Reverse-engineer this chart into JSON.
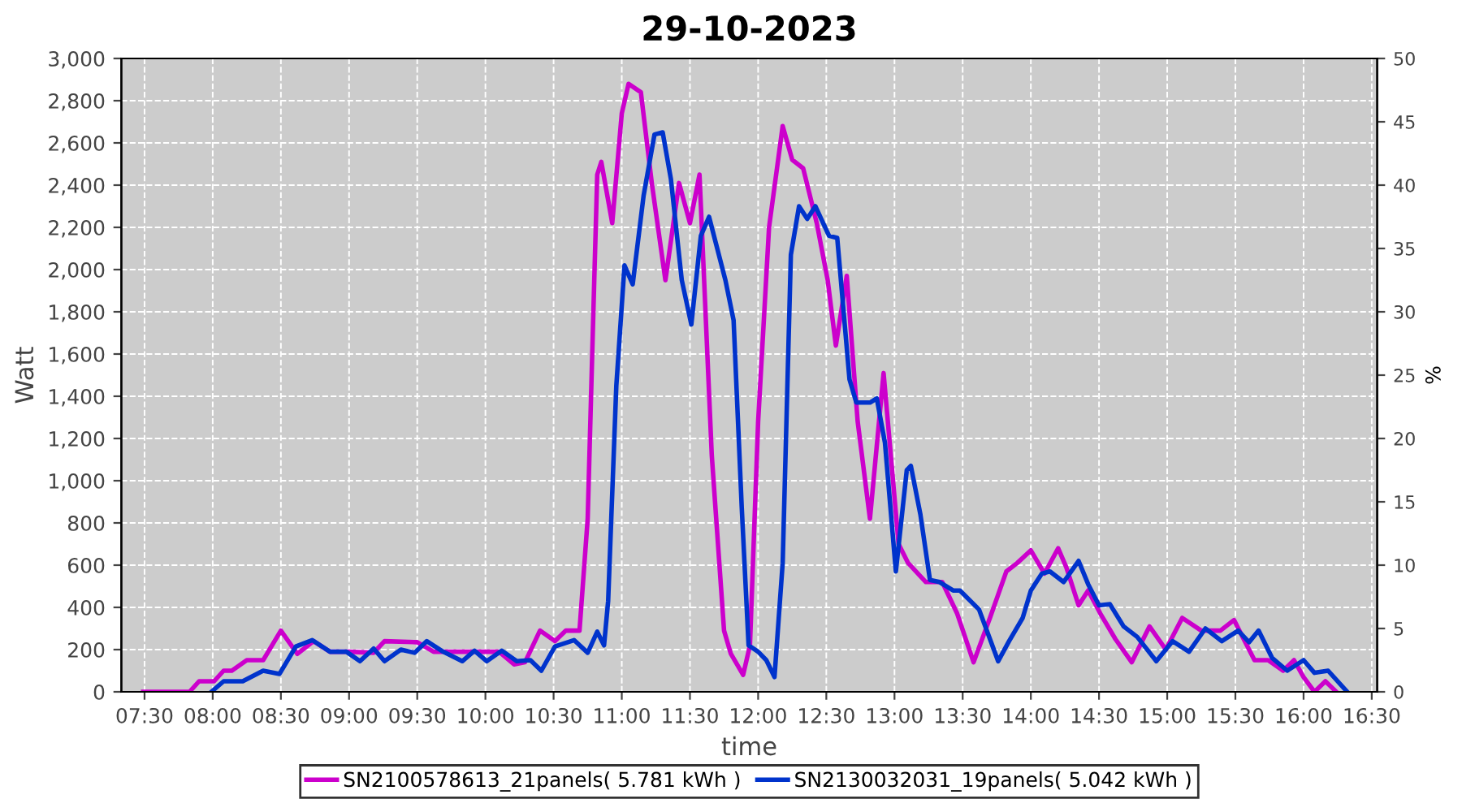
{
  "chart_data": {
    "type": "line",
    "title": "29-10-2023",
    "xlabel": "time",
    "ylabel": "Watt",
    "y2label": "%",
    "xlim": [
      7.33,
      16.54
    ],
    "xticks": [
      {
        "value": 7.5,
        "label": "07:30"
      },
      {
        "value": 8,
        "label": "08:00"
      },
      {
        "value": 8.5,
        "label": "08:30"
      },
      {
        "value": 9,
        "label": "09:00"
      },
      {
        "value": 9.5,
        "label": "09:30"
      },
      {
        "value": 10,
        "label": "10:00"
      },
      {
        "value": 10.5,
        "label": "10:30"
      },
      {
        "value": 11,
        "label": "11:00"
      },
      {
        "value": 11.5,
        "label": "11:30"
      },
      {
        "value": 12,
        "label": "12:00"
      },
      {
        "value": 12.5,
        "label": "12:30"
      },
      {
        "value": 13,
        "label": "13:00"
      },
      {
        "value": 13.5,
        "label": "13:30"
      },
      {
        "value": 14,
        "label": "14:00"
      },
      {
        "value": 14.5,
        "label": "14:30"
      },
      {
        "value": 15,
        "label": "15:00"
      },
      {
        "value": 15.5,
        "label": "15:30"
      },
      {
        "value": 16,
        "label": "16:00"
      },
      {
        "value": 16.5,
        "label": "16:30"
      }
    ],
    "ylim": [
      0,
      3000
    ],
    "yticks": [
      0,
      200,
      400,
      600,
      800,
      {
        "value": 1000,
        "label": "1,000"
      },
      {
        "value": 1200,
        "label": "1,200"
      },
      {
        "value": 1400,
        "label": "1,400"
      },
      {
        "value": 1600,
        "label": "1,600"
      },
      {
        "value": 1800,
        "label": "1,800"
      },
      {
        "value": 2000,
        "label": "2,000"
      },
      {
        "value": 2200,
        "label": "2,200"
      },
      {
        "value": 2400,
        "label": "2,400"
      },
      {
        "value": 2600,
        "label": "2,600"
      },
      {
        "value": 2800,
        "label": "2,800"
      },
      {
        "value": 3000,
        "label": "3,000"
      }
    ],
    "y2lim": [
      0,
      50
    ],
    "y2ticks": [
      0,
      5,
      10,
      15,
      20,
      25,
      30,
      35,
      40,
      45,
      50
    ],
    "grid": true,
    "legend": "bottom",
    "marker": "none",
    "line_style": "solid",
    "series": [
      {
        "name": "SN2100578613_21panels( 5.781 kWh )",
        "color": "#cc00cc",
        "x": [
          7.49,
          7.83,
          7.9,
          8.01,
          8.08,
          8.14,
          8.25,
          8.37,
          8.5,
          8.62,
          8.74,
          8.86,
          9.0,
          9.18,
          9.26,
          9.5,
          9.62,
          10.0,
          10.1,
          10.21,
          10.29,
          10.4,
          10.51,
          10.59,
          10.69,
          10.75,
          10.79,
          10.82,
          10.85,
          10.93,
          11.0,
          11.05,
          11.14,
          11.22,
          11.32,
          11.42,
          11.5,
          11.57,
          11.66,
          11.75,
          11.8,
          11.89,
          11.94,
          12.0,
          12.08,
          12.18,
          12.25,
          12.33,
          12.43,
          12.51,
          12.57,
          12.65,
          12.73,
          12.82,
          12.92,
          13.03,
          13.1,
          13.23,
          13.35,
          13.46,
          13.58,
          13.7,
          13.82,
          13.9,
          14.0,
          14.1,
          14.2,
          14.26,
          14.35,
          14.42,
          14.51,
          14.62,
          14.74,
          14.87,
          14.99,
          15.11,
          15.25,
          15.39,
          15.49,
          15.64,
          15.74,
          15.85,
          15.93,
          16.0,
          16.08,
          16.16,
          16.24
        ],
        "values": [
          0,
          0,
          50,
          50,
          100,
          100,
          150,
          150,
          290,
          180,
          240,
          190,
          190,
          185,
          240,
          235,
          190,
          190,
          190,
          130,
          140,
          290,
          240,
          290,
          290,
          820,
          1760,
          2450,
          2510,
          2220,
          2740,
          2880,
          2840,
          2410,
          1950,
          2410,
          2220,
          2450,
          1120,
          290,
          180,
          80,
          220,
          1280,
          2200,
          2680,
          2520,
          2480,
          2220,
          1950,
          1640,
          1970,
          1280,
          820,
          1510,
          700,
          610,
          520,
          520,
          370,
          140,
          350,
          570,
          610,
          670,
          560,
          680,
          590,
          410,
          480,
          370,
          250,
          140,
          310,
          200,
          350,
          290,
          290,
          340,
          150,
          150,
          100,
          150,
          70,
          0,
          50,
          0
        ]
      },
      {
        "name": "SN2130032031_19panels( 5.042 kWh )",
        "color": "#0033cc",
        "x": [
          7.99,
          8.08,
          8.22,
          8.37,
          8.49,
          8.61,
          8.73,
          8.86,
          8.98,
          9.08,
          9.18,
          9.26,
          9.38,
          9.48,
          9.57,
          9.69,
          9.83,
          9.92,
          10.01,
          10.12,
          10.23,
          10.33,
          10.41,
          10.51,
          10.65,
          10.75,
          10.82,
          10.87,
          10.9,
          10.96,
          11.02,
          11.08,
          11.16,
          11.24,
          11.3,
          11.36,
          11.44,
          11.51,
          11.58,
          11.64,
          11.76,
          11.82,
          11.88,
          11.93,
          12.0,
          12.06,
          12.12,
          12.18,
          12.24,
          12.3,
          12.36,
          12.42,
          12.52,
          12.58,
          12.67,
          12.72,
          12.82,
          12.87,
          12.93,
          13.01,
          13.09,
          13.12,
          13.19,
          13.26,
          13.33,
          13.43,
          13.48,
          13.62,
          13.76,
          13.84,
          13.94,
          14.0,
          14.08,
          14.14,
          14.24,
          14.35,
          14.42,
          14.5,
          14.58,
          14.68,
          14.78,
          14.92,
          15.04,
          15.16,
          15.28,
          15.4,
          15.52,
          15.6,
          15.67,
          15.77,
          15.88,
          16.0,
          16.08,
          16.18,
          16.32
        ],
        "values": [
          0,
          50,
          50,
          100,
          85,
          215,
          245,
          190,
          190,
          145,
          205,
          145,
          200,
          185,
          240,
          190,
          145,
          195,
          145,
          195,
          145,
          150,
          100,
          215,
          245,
          185,
          285,
          220,
          430,
          1450,
          2020,
          1930,
          2350,
          2640,
          2650,
          2430,
          1950,
          1740,
          2160,
          2250,
          1950,
          1760,
          870,
          220,
          190,
          150,
          70,
          610,
          2070,
          2300,
          2240,
          2300,
          2160,
          2150,
          1480,
          1370,
          1370,
          1390,
          1180,
          570,
          1050,
          1070,
          840,
          530,
          520,
          480,
          480,
          390,
          145,
          240,
          350,
          480,
          560,
          570,
          520,
          620,
          510,
          410,
          415,
          310,
          260,
          145,
          240,
          190,
          300,
          240,
          290,
          235,
          290,
          160,
          100,
          150,
          90,
          100,
          0
        ]
      }
    ]
  }
}
